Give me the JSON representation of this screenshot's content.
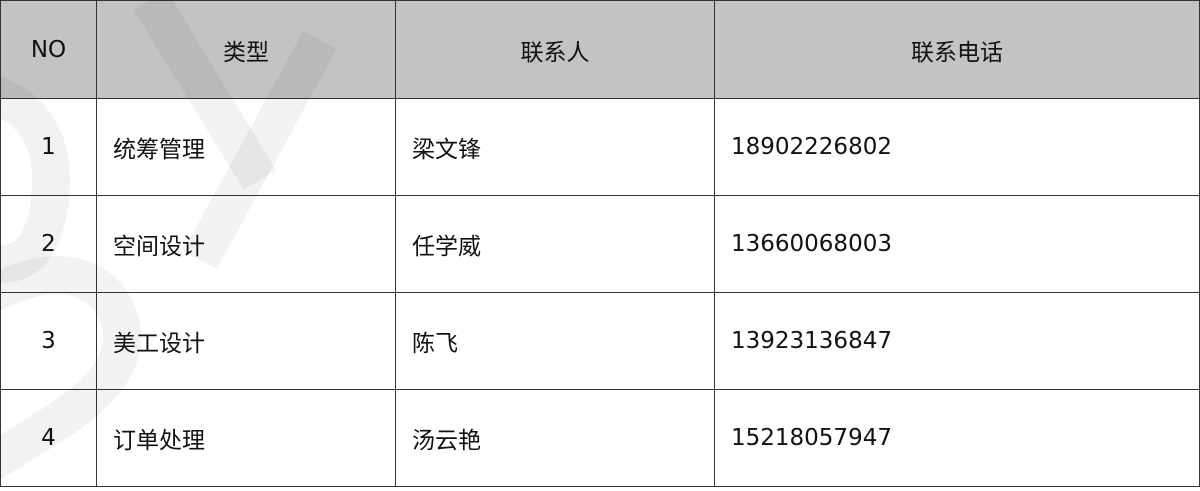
{
  "table": {
    "headers": [
      "NO",
      "类型",
      "联系人",
      "联系电话"
    ],
    "rows": [
      [
        "1",
        "统筹管理",
        "梁文锋",
        "18902226802"
      ],
      [
        "2",
        "空间设计",
        "任学威",
        "13660068003"
      ],
      [
        "3",
        "美工设计",
        "陈飞",
        "13923136847"
      ],
      [
        "4",
        "订单处理",
        "汤云艳",
        "15218057947"
      ]
    ]
  },
  "colors": {
    "header_bg": "#c3c3c3",
    "border": "#333333"
  }
}
